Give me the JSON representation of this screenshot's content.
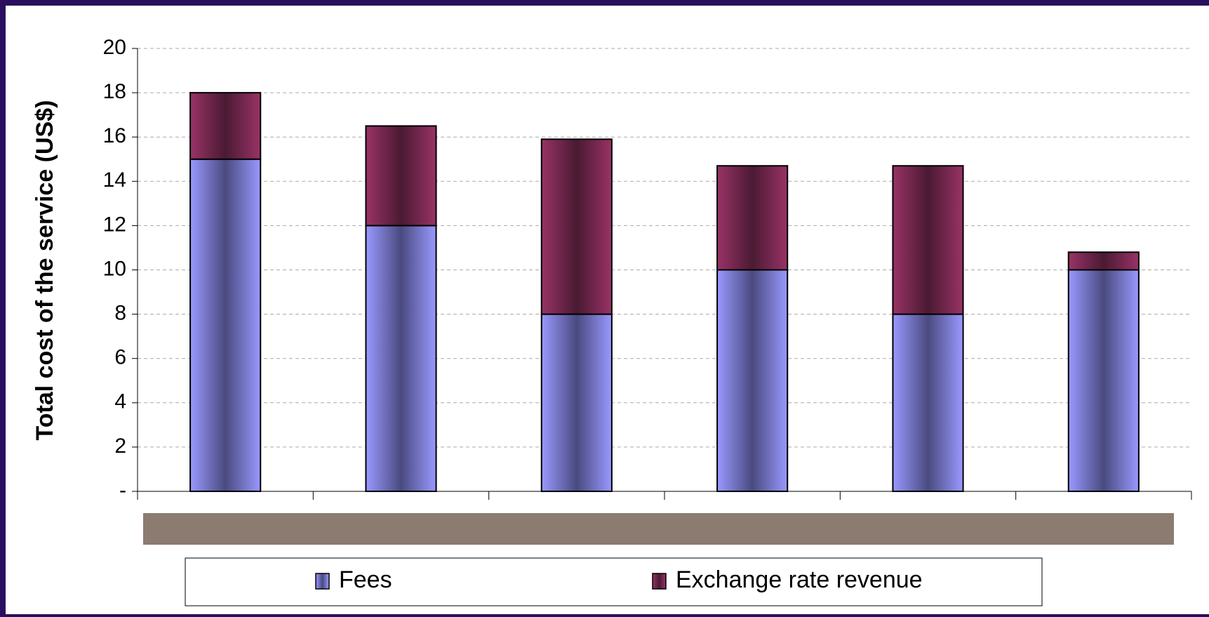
{
  "chart_data": {
    "type": "stacked_bar",
    "ylabel": "Total cost of the service (US$)",
    "categories": [
      null,
      null,
      null,
      null,
      null,
      null
    ],
    "series": [
      {
        "name": "Fees",
        "color": "#9999ff",
        "values": [
          15,
          12,
          8,
          10,
          8,
          10
        ]
      },
      {
        "name": "Exchange rate revenue",
        "color": "#993366",
        "values": [
          3,
          4.5,
          7.9,
          4.7,
          6.7,
          0.8
        ]
      }
    ],
    "ylim": [
      0,
      20
    ],
    "yticks": [
      {
        "value": 0,
        "label": "-"
      },
      2,
      4,
      6,
      8,
      10,
      12,
      14,
      16,
      18,
      20
    ],
    "grid": true,
    "legend": "bottom"
  }
}
